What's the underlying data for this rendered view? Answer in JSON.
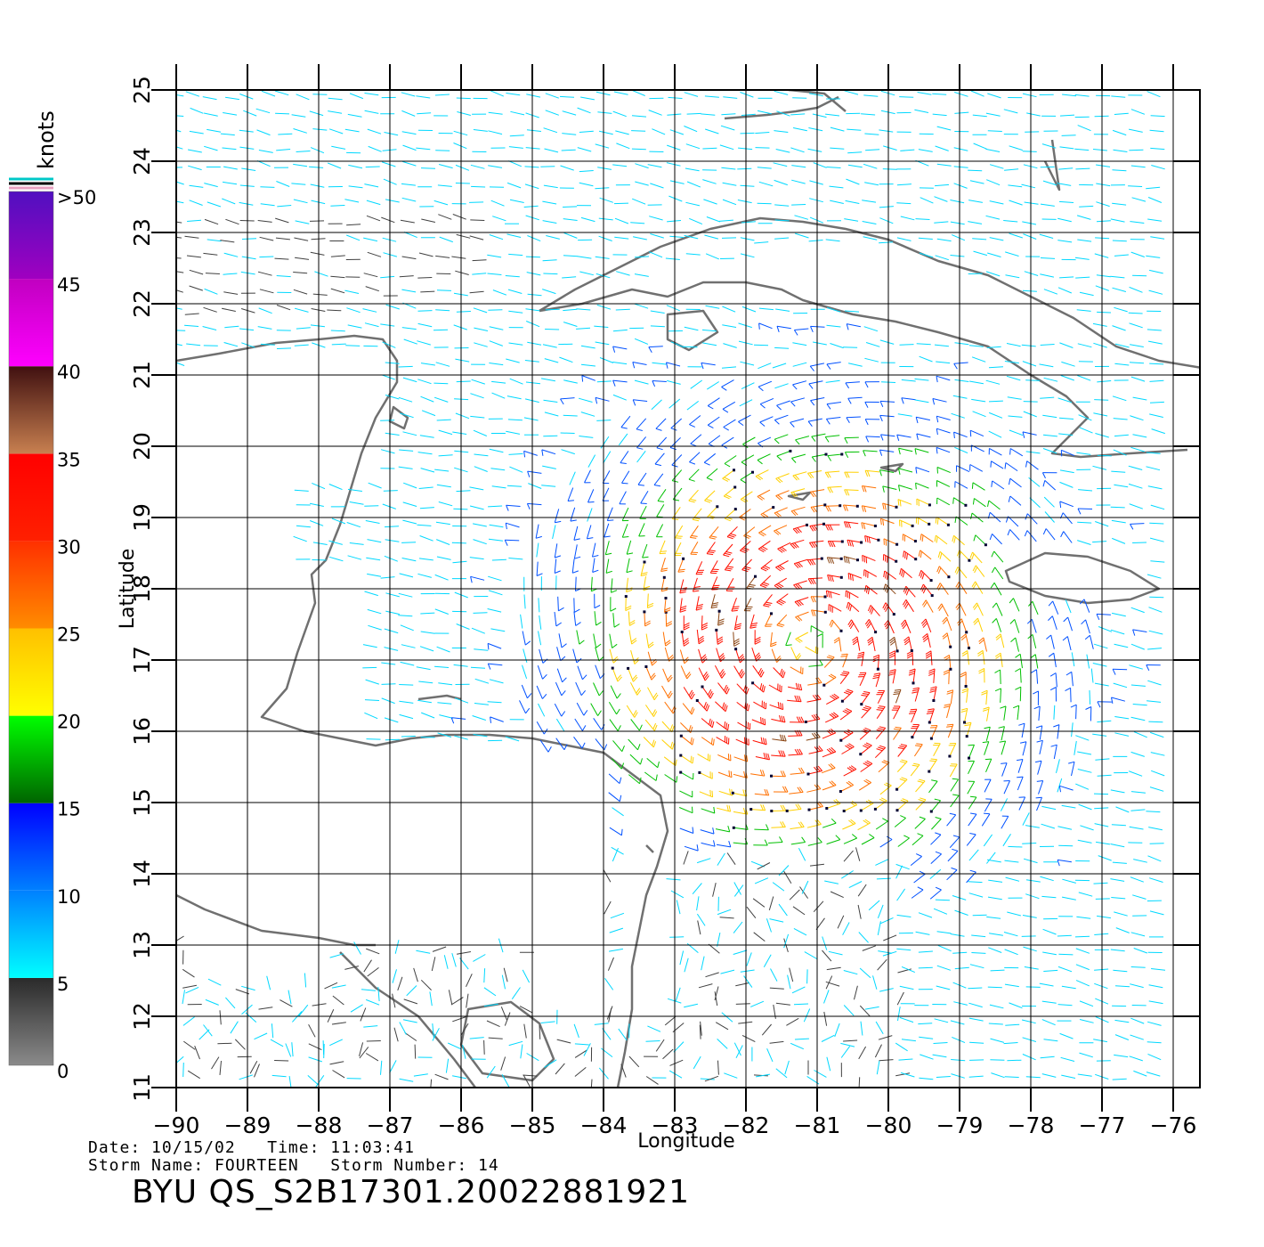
{
  "map": {
    "lon_range": [
      -90,
      -76
    ],
    "lat_range": [
      11,
      25
    ],
    "lon_ticks": [
      "−90",
      "−89",
      "−88",
      "−87",
      "−86",
      "−85",
      "−84",
      "−83",
      "−82",
      "−81",
      "−80",
      "−79",
      "−78",
      "−77",
      "−76"
    ],
    "lat_ticks": [
      "11",
      "12",
      "13",
      "14",
      "15",
      "16",
      "17",
      "18",
      "19",
      "20",
      "21",
      "22",
      "23",
      "24",
      "25"
    ],
    "x_label": "Longitude",
    "y_label": "Latitude",
    "grid": true,
    "coastline_color": "#707070",
    "storm_center": {
      "lon": -81.1,
      "lat": 17.2
    }
  },
  "colorbar": {
    "unit": "knots",
    "labels": [
      ">50",
      "45",
      "40",
      "35",
      "30",
      "25",
      "20",
      "15",
      "10",
      "5",
      "0"
    ],
    "bands": [
      {
        "from": 0,
        "to": 5,
        "colors": [
          "#8a8a8a",
          "#2a2a2a"
        ]
      },
      {
        "from": 5,
        "to": 10,
        "colors": [
          "#00ffff",
          "#0080ff"
        ]
      },
      {
        "from": 10,
        "to": 15,
        "colors": [
          "#0080ff",
          "#0000ff"
        ]
      },
      {
        "from": 15,
        "to": 20,
        "colors": [
          "#006400",
          "#00ff00"
        ]
      },
      {
        "from": 20,
        "to": 25,
        "colors": [
          "#ffff00",
          "#ffc000"
        ]
      },
      {
        "from": 25,
        "to": 30,
        "colors": [
          "#ff8c00",
          "#ff3000"
        ]
      },
      {
        "from": 30,
        "to": 35,
        "colors": [
          "#ff2000",
          "#ff0000"
        ]
      },
      {
        "from": 35,
        "to": 40,
        "colors": [
          "#c88050",
          "#401010"
        ]
      },
      {
        "from": 40,
        "to": 45,
        "colors": [
          "#ff00ff",
          "#c000c0"
        ]
      },
      {
        "from": 45,
        "to": 50,
        "colors": [
          "#a000c0",
          "#5010c0"
        ]
      }
    ]
  },
  "footer": {
    "date_label": "Date:",
    "date": "10/15/02",
    "time_label": "Time:",
    "time": "11:03:41",
    "storm_name_label": "Storm Name:",
    "storm_name": "FOURTEEN",
    "storm_number_label": "Storm Number:",
    "storm_number": "14",
    "product": "BYU QS_S2B17301.20022881921"
  }
}
